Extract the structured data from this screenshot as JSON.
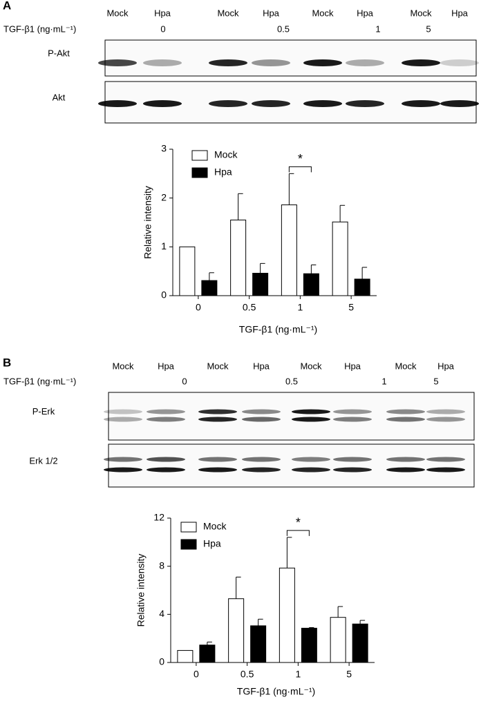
{
  "chart_data": [
    {
      "type": "bar",
      "panel": "A",
      "ylabel": "Relative intensity",
      "xlabel": "TGF-β1 (ng·mL⁻¹)",
      "categories": [
        "0",
        "0.5",
        "1",
        "5"
      ],
      "series": [
        {
          "name": "Mock",
          "color": "#ffffff",
          "values": [
            1,
            1.55,
            1.86,
            1.51
          ],
          "errors": [
            0,
            0.54,
            0.64,
            0.34
          ]
        },
        {
          "name": "Hpa",
          "color": "#000000",
          "values": [
            0.31,
            0.46,
            0.45,
            0.34
          ],
          "errors": [
            0.16,
            0.2,
            0.18,
            0.24
          ]
        }
      ],
      "ylim": [
        0,
        3
      ],
      "yticks": [
        0,
        1,
        2,
        3
      ],
      "grid": false,
      "significance": {
        "category": 2,
        "label": "*"
      }
    },
    {
      "type": "bar",
      "panel": "B",
      "ylabel": "Relative intensity",
      "xlabel": "TGF-β1 (ng·mL⁻¹)",
      "categories": [
        "0",
        "0.5",
        "1",
        "5"
      ],
      "series": [
        {
          "name": "Mock",
          "color": "#ffffff",
          "values": [
            1,
            5.3,
            7.85,
            3.75
          ],
          "errors": [
            0,
            1.8,
            2.55,
            0.9
          ]
        },
        {
          "name": "Hpa",
          "color": "#000000",
          "values": [
            1.45,
            3.05,
            2.85,
            3.2
          ],
          "errors": [
            0.25,
            0.55,
            0.05,
            0.3
          ]
        }
      ],
      "ylim": [
        0,
        12
      ],
      "yticks": [
        0,
        4,
        8,
        12
      ],
      "grid": false,
      "significance": {
        "category": 2,
        "label": "*"
      }
    }
  ],
  "blots": [
    {
      "lanes": [
        "Mock",
        "Hpa",
        "Mock",
        "Hpa",
        "Mock",
        "Hpa",
        "Mock",
        "Hpa"
      ],
      "treatment_label": "TGF-β1 (ng·mL⁻¹)",
      "doses": [
        "0",
        "0.5",
        "1",
        "5"
      ],
      "rows": [
        "P-Akt",
        "Akt"
      ]
    },
    {
      "lanes": [
        "Mock",
        "Hpa",
        "Mock",
        "Hpa",
        "Mock",
        "Hpa",
        "Mock",
        "Hpa"
      ],
      "treatment_label": "TGF-β1 (ng·mL⁻¹)",
      "doses": [
        "0",
        "0.5",
        "1",
        "5"
      ],
      "rows": [
        "P-Erk",
        "Erk 1/2"
      ]
    }
  ]
}
